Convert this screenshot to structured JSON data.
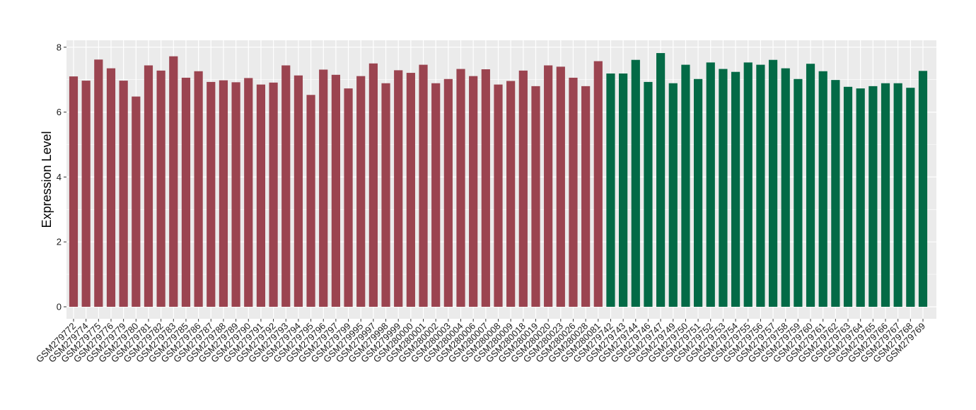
{
  "chart_data": {
    "type": "bar",
    "title": "",
    "xlabel": "",
    "ylabel": "Expression Level",
    "ylim": [
      0,
      8.3
    ],
    "yticks": [
      0,
      2,
      4,
      6,
      8
    ],
    "ytick_labels": [
      "0",
      "2",
      "4",
      "6",
      "8"
    ],
    "grid": true,
    "legend": "none",
    "panel_background": "#ebebeb",
    "grid_color": "#ffffff",
    "colors": {
      "group_1": "#9b4450",
      "group_2": "#036a46"
    },
    "categories": [
      "GSM279772",
      "GSM279774",
      "GSM279775",
      "GSM279776",
      "GSM279779",
      "GSM279780",
      "GSM279781",
      "GSM279782",
      "GSM279783",
      "GSM279785",
      "GSM279786",
      "GSM279787",
      "GSM279788",
      "GSM279789",
      "GSM279790",
      "GSM279791",
      "GSM279792",
      "GSM279793",
      "GSM279794",
      "GSM279795",
      "GSM279796",
      "GSM279797",
      "GSM279799",
      "GSM279995",
      "GSM279997",
      "GSM279998",
      "GSM279999",
      "GSM280000",
      "GSM280001",
      "GSM280002",
      "GSM280003",
      "GSM280004",
      "GSM280006",
      "GSM280007",
      "GSM280008",
      "GSM280009",
      "GSM280018",
      "GSM280019",
      "GSM280020",
      "GSM280023",
      "GSM280026",
      "GSM280028",
      "GSM280081",
      "GSM279742",
      "GSM279743",
      "GSM279744",
      "GSM279746",
      "GSM279747",
      "GSM279749",
      "GSM279750",
      "GSM279751",
      "GSM279752",
      "GSM279753",
      "GSM279754",
      "GSM279755",
      "GSM279756",
      "GSM279757",
      "GSM279758",
      "GSM279759",
      "GSM279760",
      "GSM279761",
      "GSM279762",
      "GSM279763",
      "GSM279764",
      "GSM279765",
      "GSM279766",
      "GSM279767",
      "GSM279768",
      "GSM279769"
    ],
    "values": [
      7.1,
      6.97,
      7.62,
      7.35,
      6.97,
      6.48,
      7.44,
      7.28,
      7.72,
      7.06,
      7.26,
      6.93,
      6.98,
      6.92,
      7.05,
      6.85,
      6.91,
      7.44,
      7.13,
      6.53,
      7.31,
      7.15,
      6.73,
      7.11,
      7.5,
      6.89,
      7.29,
      7.21,
      7.46,
      6.89,
      7.02,
      7.33,
      7.11,
      7.32,
      6.85,
      6.96,
      7.28,
      6.8,
      7.44,
      7.4,
      7.06,
      6.8,
      7.57,
      7.19,
      7.19,
      7.61,
      6.93,
      7.82,
      6.89,
      7.46,
      7.02,
      7.53,
      7.33,
      7.24,
      7.53,
      7.46,
      7.61,
      7.35,
      7.02,
      7.49,
      7.26,
      6.99,
      6.78,
      6.73,
      6.8,
      6.89,
      6.89,
      6.75,
      7.27
    ],
    "group": [
      1,
      1,
      1,
      1,
      1,
      1,
      1,
      1,
      1,
      1,
      1,
      1,
      1,
      1,
      1,
      1,
      1,
      1,
      1,
      1,
      1,
      1,
      1,
      1,
      1,
      1,
      1,
      1,
      1,
      1,
      1,
      1,
      1,
      1,
      1,
      1,
      1,
      1,
      1,
      1,
      1,
      1,
      1,
      2,
      2,
      2,
      2,
      2,
      2,
      2,
      2,
      2,
      2,
      2,
      2,
      2,
      2,
      2,
      2,
      2,
      2,
      2,
      2,
      2,
      2,
      2,
      2,
      2,
      2
    ]
  }
}
